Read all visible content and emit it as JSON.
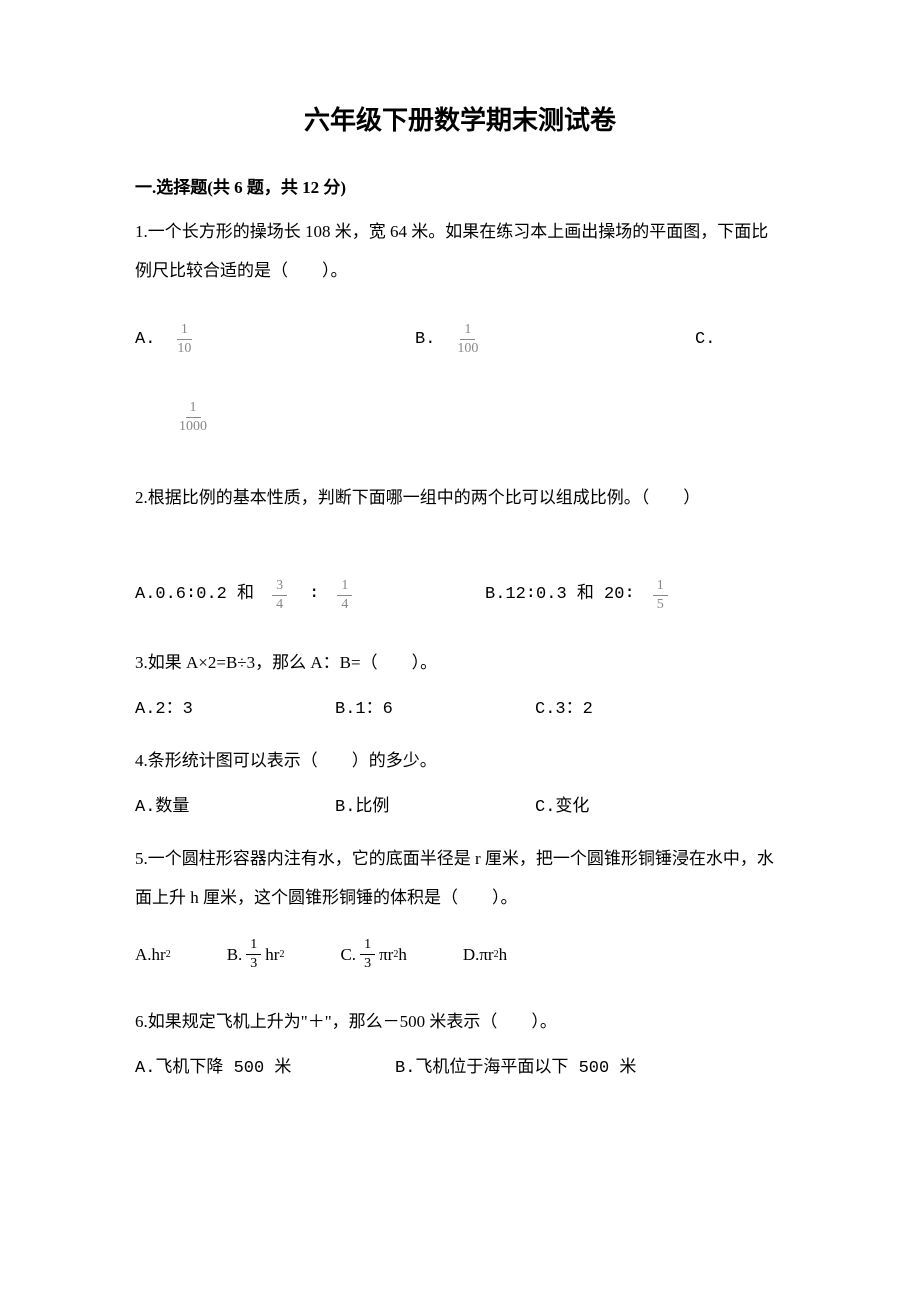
{
  "title": "六年级下册数学期末测试卷",
  "section1": {
    "header": "一.选择题(共 6 题，共 12 分)",
    "q1": {
      "text": "1.一个长方形的操场长 108 米，宽 64 米。如果在练习本上画出操场的平面图，下面比例尺比较合适的是（　　）。",
      "optA_label": "A.",
      "optA_num": "1",
      "optA_den": "10",
      "optB_label": "B.",
      "optB_num": "1",
      "optB_den": "100",
      "optC_label": "C.",
      "optC_num": "1",
      "optC_den": "1000"
    },
    "q2": {
      "text": "2.根据比例的基本性质，判断下面哪一组中的两个比可以组成比例。（　　）",
      "optA_prefix": "A.0.6∶0.2 和",
      "optA_f1_num": "3",
      "optA_f1_den": "4",
      "optA_colon": "∶",
      "optA_f2_num": "1",
      "optA_f2_den": "4",
      "optB_prefix": "B.12∶0.3 和 20∶",
      "optB_f_num": "1",
      "optB_f_den": "5"
    },
    "q3": {
      "text": "3.如果 A×2=B÷3，那么 A：B=（　　）。",
      "optA": "A.2：3",
      "optB": "B.1：6",
      "optC": "C.3：2"
    },
    "q4": {
      "text": "4.条形统计图可以表示（　　）的多少。",
      "optA": "A.数量",
      "optB": "B.比例",
      "optC": "C.变化"
    },
    "q5": {
      "text": "5.一个圆柱形容器内注有水，它的底面半径是 r 厘米，把一个圆锥形铜锤浸在水中，水面上升 h 厘米，这个圆锥形铜锤的体积是（　　）。",
      "optA": "A.hr",
      "optA_sup": "2",
      "optB_label": "B.",
      "optB_num": "1",
      "optB_den": "3",
      "optB_tail": " hr",
      "optB_sup": "2",
      "optC_label": "C.",
      "optC_num": "1",
      "optC_den": "3",
      "optC_tail": " πr",
      "optC_sup": "2",
      "optC_tail2": "h",
      "optD": "D.πr",
      "optD_sup": "2",
      "optD_tail": "h"
    },
    "q6": {
      "text": "6.如果规定飞机上升为\"＋\"，那么－500 米表示（　　）。",
      "optA": "A.飞机下降 500 米",
      "optB": "B.飞机位于海平面以下 500 米"
    }
  },
  "style": {
    "body_width": 920,
    "body_bg": "#ffffff",
    "text_color": "#000000",
    "frac_color": "#888888",
    "title_fontsize": 26,
    "body_fontsize": 17,
    "frac_fontsize": 14,
    "line_height": 2.3,
    "font_title": "SimHei",
    "font_body": "SimSun",
    "font_options": "Courier New"
  }
}
